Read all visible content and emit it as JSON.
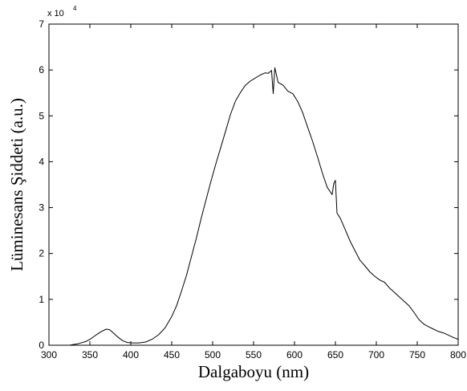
{
  "chart_data": {
    "type": "line",
    "xlabel": "Dalgaboyu (nm)",
    "ylabel": "Lüminesans Şiddeti (a.u.)",
    "y_multiplier_base": "x 10",
    "y_multiplier_exp": "4",
    "xlim": [
      300,
      800
    ],
    "ylim": [
      0,
      7
    ],
    "xticks": [
      300,
      350,
      400,
      450,
      500,
      550,
      600,
      650,
      700,
      750,
      800
    ],
    "yticks": [
      0,
      1,
      2,
      3,
      4,
      5,
      6,
      7
    ],
    "grid": false,
    "series": [
      {
        "color": "#000000",
        "x": [
          325,
          335,
          345,
          352,
          358,
          364,
          370,
          374,
          378,
          384,
          390,
          396,
          402,
          410,
          418,
          426,
          434,
          442,
          450,
          456,
          462,
          468,
          474,
          480,
          486,
          492,
          498,
          504,
          510,
          516,
          522,
          528,
          534,
          540,
          546,
          552,
          558,
          564,
          568,
          572,
          574,
          576,
          580,
          586,
          592,
          598,
          604,
          610,
          616,
          622,
          628,
          634,
          640,
          646,
          648,
          650,
          652,
          656,
          662,
          668,
          674,
          680,
          686,
          692,
          698,
          704,
          710,
          716,
          722,
          728,
          734,
          740,
          746,
          752,
          758,
          764,
          770,
          776,
          782,
          788,
          794,
          800
        ],
        "y": [
          0.0,
          0.03,
          0.08,
          0.15,
          0.23,
          0.3,
          0.35,
          0.34,
          0.28,
          0.18,
          0.1,
          0.06,
          0.05,
          0.05,
          0.07,
          0.13,
          0.23,
          0.38,
          0.6,
          0.85,
          1.15,
          1.5,
          1.9,
          2.35,
          2.8,
          3.2,
          3.6,
          4.0,
          4.35,
          4.7,
          5.0,
          5.3,
          5.5,
          5.65,
          5.75,
          5.8,
          5.85,
          5.9,
          5.95,
          6.0,
          5.5,
          6.05,
          5.75,
          5.7,
          5.55,
          5.45,
          5.3,
          5.05,
          4.75,
          4.45,
          4.1,
          3.75,
          3.45,
          3.3,
          3.55,
          3.6,
          2.9,
          2.8,
          2.55,
          2.3,
          2.05,
          1.85,
          1.7,
          1.6,
          1.5,
          1.42,
          1.35,
          1.28,
          1.18,
          1.08,
          0.98,
          0.88,
          0.75,
          0.6,
          0.46,
          0.4,
          0.35,
          0.3,
          0.27,
          0.22,
          0.17,
          0.13
        ]
      }
    ]
  }
}
